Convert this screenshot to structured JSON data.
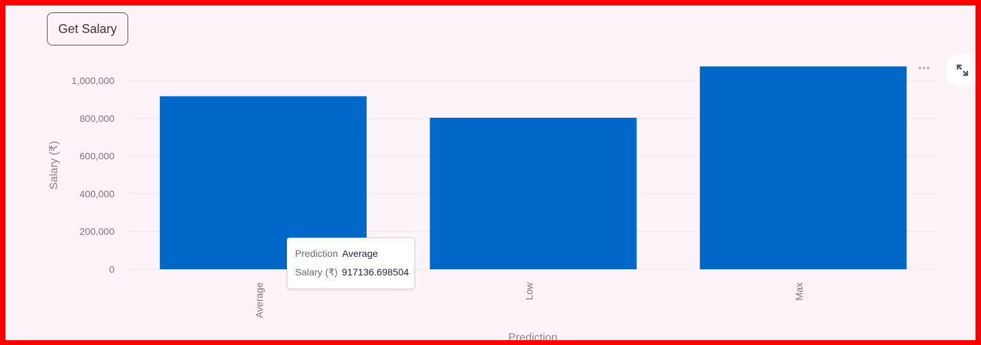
{
  "button": {
    "label": "Get Salary"
  },
  "chart_data": {
    "type": "bar",
    "categories": [
      "Average",
      "Low",
      "Max"
    ],
    "values": [
      917136.698504,
      803000,
      1075000
    ],
    "xlabel": "Prediction",
    "ylabel": "Salary (₹)",
    "ylim": [
      0,
      1000000
    ],
    "yticks": [
      "0",
      "200,000",
      "400,000",
      "600,000",
      "800,000",
      "1,000,000"
    ],
    "grid": true,
    "color": "#0068c9"
  },
  "tooltip": {
    "rows": [
      {
        "key": "Prediction",
        "value": "Average"
      },
      {
        "key": "Salary (₹)",
        "value": "917136.698504"
      }
    ]
  },
  "toolbar": {
    "menu_icon": "more-horizontal-icon",
    "expand_icon": "fullscreen-expand-icon"
  }
}
